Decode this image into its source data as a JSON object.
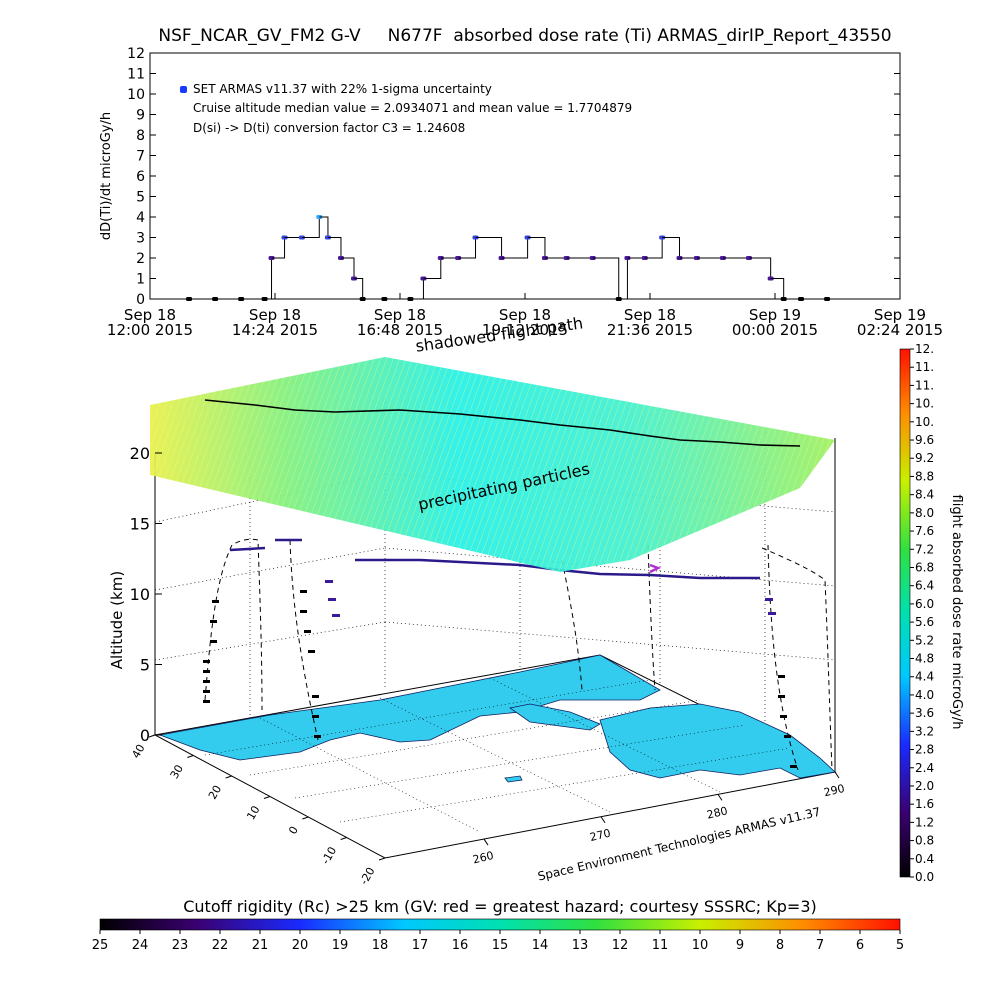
{
  "title": "NSF_NCAR_GV_FM2 G-V     N677F  absorbed dose rate (Ti) ARMAS_dirIP_Report_43550",
  "chart_data": [
    {
      "type": "scatter",
      "ylabel": "dD(Ti)/dt microGy/h",
      "ylim": [
        0,
        12
      ],
      "yticks": [
        "0",
        "1",
        "2",
        "3",
        "4",
        "5",
        "6",
        "7",
        "8",
        "9",
        "10",
        "11",
        "12"
      ],
      "xtick_labels": [
        [
          "Sep 18",
          "12:00 2015"
        ],
        [
          "Sep 18",
          "14:24 2015"
        ],
        [
          "Sep 18",
          "16:48 2015"
        ],
        [
          "Sep 18",
          "19:12 2015"
        ],
        [
          "Sep 18",
          "21:36 2015"
        ],
        [
          "Sep 19",
          "00:00 2015"
        ],
        [
          "Sep 19",
          "02:24 2015"
        ]
      ],
      "xlim": [
        "2015-09-18 12:00",
        "2015-09-19 02:24"
      ],
      "annotations": [
        "SET ARMAS v11.37 with 22% 1-sigma uncertainty",
        "Cruise altitude median value = 2.0934071 and mean value = 1.7704879",
        "D(si) -> D(ti) conversion factor C3 = 1.24608"
      ],
      "series": [
        {
          "name": "SET ARMAS v11.37 with 22% 1-sigma uncertainty",
          "color": "#3a2ab0",
          "x": [
            "2015-09-18 12:45",
            "2015-09-18 13:15",
            "2015-09-18 13:45",
            "2015-09-18 14:12",
            "2015-09-18 14:20",
            "2015-09-18 14:35",
            "2015-09-18 14:55",
            "2015-09-18 15:15",
            "2015-09-18 15:25",
            "2015-09-18 15:40",
            "2015-09-18 15:55",
            "2015-09-18 16:05",
            "2015-09-18 16:30",
            "2015-09-18 17:00",
            "2015-09-18 17:15",
            "2015-09-18 17:35",
            "2015-09-18 17:55",
            "2015-09-18 18:15",
            "2015-09-18 18:45",
            "2015-09-18 19:15",
            "2015-09-18 19:35",
            "2015-09-18 20:00",
            "2015-09-18 20:30",
            "2015-09-18 21:00",
            "2015-09-18 21:10",
            "2015-09-18 21:30",
            "2015-09-18 21:50",
            "2015-09-18 22:10",
            "2015-09-18 22:30",
            "2015-09-18 23:00",
            "2015-09-18 23:30",
            "2015-09-18 23:55",
            "2015-09-19 00:10",
            "2015-09-19 00:30",
            "2015-09-19 01:00"
          ],
          "y": [
            0,
            0,
            0,
            0,
            2,
            3,
            3,
            4,
            3,
            2,
            1,
            0,
            0,
            0,
            1,
            2,
            2,
            3,
            2,
            3,
            2,
            2,
            2,
            0,
            2,
            2,
            3,
            2,
            2,
            2,
            2,
            1,
            0,
            0,
            0
          ]
        }
      ]
    },
    {
      "type": "3d-scatter",
      "zlabel": "Altitude (km)",
      "zticks": [
        "0",
        "5",
        "10",
        "15",
        "20"
      ],
      "x_ticks": [
        "260",
        "270",
        "280",
        "290"
      ],
      "y_ticks": [
        "-20",
        "-10",
        "0",
        "10",
        "20",
        "30",
        "40"
      ],
      "labels": [
        "shadowed flight path",
        "precipitating particles"
      ],
      "footer": "Space Environment Technologies ARMAS v11.37",
      "colorbar": {
        "label": "flight absorbed dose rate microGy/h",
        "ticks": [
          "0.0",
          "0.4",
          "0.8",
          "1.2",
          "1.6",
          "2.0",
          "2.4",
          "2.8",
          "3.2",
          "3.6",
          "4.0",
          "4.4",
          "4.8",
          "5.2",
          "5.6",
          "6.0",
          "6.4",
          "6.8",
          "7.2",
          "7.6",
          "8.0",
          "8.4",
          "8.8",
          "9.2",
          "9.6",
          "10.",
          "10.",
          "11.",
          "11.",
          "12."
        ]
      }
    },
    {
      "type": "colorbar",
      "title": "Cutoff rigidity (Rc) >25 km (GV: red = greatest hazard; courtesy SSSRC; Kp=3)",
      "ticks": [
        "25",
        "24",
        "23",
        "22",
        "21",
        "20",
        "19",
        "18",
        "17",
        "16",
        "15",
        "14",
        "13",
        "12",
        "11",
        "10",
        "9",
        "8",
        "7",
        "6",
        "5"
      ]
    }
  ]
}
